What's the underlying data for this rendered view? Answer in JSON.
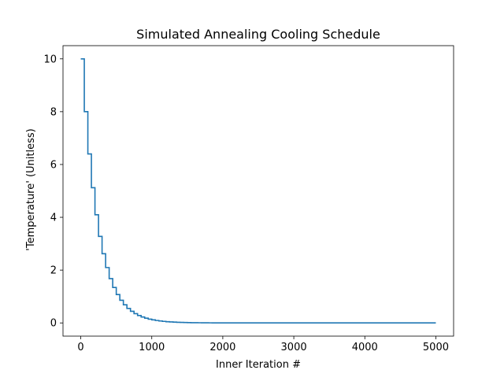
{
  "chart_data": {
    "type": "line",
    "title": "Simulated Annealing Cooling Schedule",
    "xlabel": "Inner Iteration #",
    "ylabel": "'Temperature' (Unitless)",
    "xlim": [
      -250,
      5250
    ],
    "ylim": [
      -0.5,
      10.5
    ],
    "xticks": [
      0,
      1000,
      2000,
      3000,
      4000,
      5000
    ],
    "xtick_labels": [
      "0",
      "1000",
      "2000",
      "3000",
      "4000",
      "5000"
    ],
    "yticks": [
      0,
      2,
      4,
      6,
      8,
      10
    ],
    "ytick_labels": [
      "0",
      "2",
      "4",
      "6",
      "8",
      "10"
    ],
    "grid": false,
    "series": [
      {
        "color": "#1f77b4",
        "schedule": {
          "initial_temperature": 10,
          "cooling_factor": 0.8,
          "iterations_per_step": 50,
          "total_iterations": 5000
        }
      }
    ]
  }
}
